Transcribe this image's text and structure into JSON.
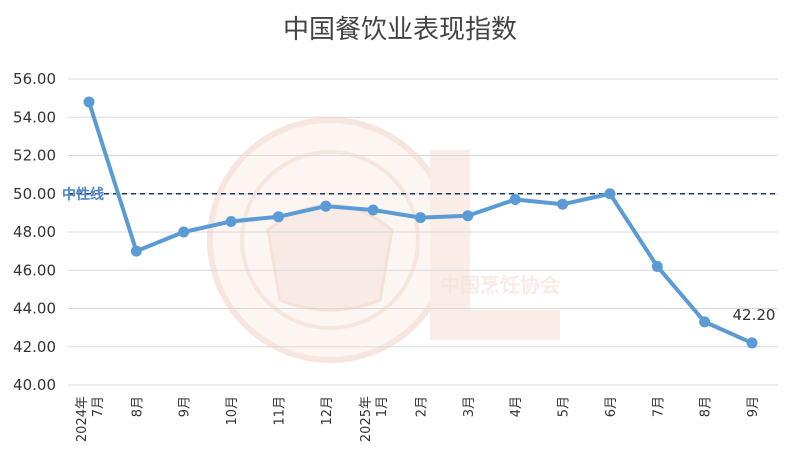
{
  "chart_data": {
    "type": "line",
    "title": "中国餐饮业表现指数",
    "categories": [
      [
        "2024年",
        "7月"
      ],
      [
        "8月"
      ],
      [
        "9月"
      ],
      [
        "10月"
      ],
      [
        "11月"
      ],
      [
        "12月"
      ],
      [
        "2025年",
        "1月"
      ],
      [
        "2月"
      ],
      [
        "3月"
      ],
      [
        "4月"
      ],
      [
        "5月"
      ],
      [
        "6月"
      ],
      [
        "7月"
      ],
      [
        "8月"
      ],
      [
        "9月"
      ]
    ],
    "series": [
      {
        "values": [
          54.8,
          47.0,
          48.0,
          48.55,
          48.8,
          49.35,
          49.15,
          48.75,
          48.85,
          49.7,
          49.45,
          50.0,
          46.2,
          43.3,
          42.2
        ],
        "color": "#5b9bd5"
      }
    ],
    "ylim": [
      40,
      56
    ],
    "yticks": [
      "40.00",
      "42.00",
      "44.00",
      "46.00",
      "48.00",
      "50.00",
      "52.00",
      "54.00",
      "56.00"
    ],
    "reference_line": {
      "value": 50,
      "label": "中性线",
      "style": "dashed",
      "color": "#1f3864"
    },
    "data_labels": [
      {
        "index": 14,
        "text": "42.20"
      }
    ],
    "grid": "horizontal",
    "legend": "none",
    "watermark": {
      "text": "中国烹饪协会"
    }
  }
}
